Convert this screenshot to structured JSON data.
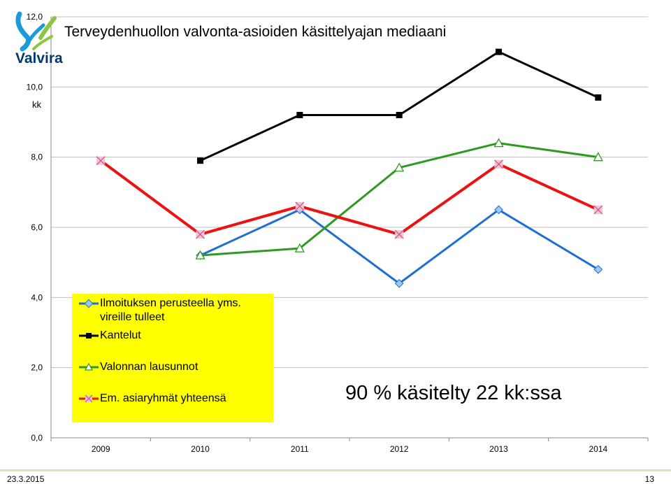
{
  "logo": {
    "text": "Valvira"
  },
  "footer": {
    "date": "23.3.2015",
    "page": "13"
  },
  "annotation": "90 % käsitelty  22 kk:ssa",
  "chart_data": {
    "type": "line",
    "title": "Terveydenhuollon valvonta-asioiden käsittelyajan mediaani",
    "ylabel": "kk",
    "xlabel": "",
    "categories": [
      "2009",
      "2010",
      "2011",
      "2012",
      "2013",
      "2014"
    ],
    "ylim": [
      0,
      12
    ],
    "yticks": [
      "0,0",
      "2,0",
      "4,0",
      "6,0",
      "8,0",
      "10,0",
      "12,0"
    ],
    "grid": true,
    "legend_position": "bottom-left",
    "series": [
      {
        "name": "Ilmoituksen perusteella yms. vireille tulleet",
        "legend_lines": [
          "Ilmoituksen perusteella yms.",
          "vireille tulleet"
        ],
        "color": "#1f6fd1",
        "marker": "diamond",
        "values": [
          null,
          5.2,
          6.5,
          4.4,
          6.5,
          4.8
        ]
      },
      {
        "name": "Kantelut",
        "legend_lines": [
          "Kantelut"
        ],
        "color": "#000000",
        "marker": "square",
        "values": [
          null,
          7.9,
          9.2,
          9.2,
          11.0,
          9.7
        ]
      },
      {
        "name": "Valonnan lausunnot",
        "legend_lines": [
          "Valonnan lausunnot"
        ],
        "color": "#2e9a1f",
        "marker": "triangle",
        "values": [
          null,
          5.2,
          5.4,
          7.7,
          8.4,
          8.0
        ]
      },
      {
        "name": "Em. asiaryhmät yhteensä",
        "legend_lines": [
          "Em. asiaryhmät yhteensä"
        ],
        "color": "#ee1111",
        "marker": "x",
        "values": [
          7.9,
          5.8,
          6.6,
          5.8,
          7.8,
          6.5
        ]
      }
    ]
  }
}
